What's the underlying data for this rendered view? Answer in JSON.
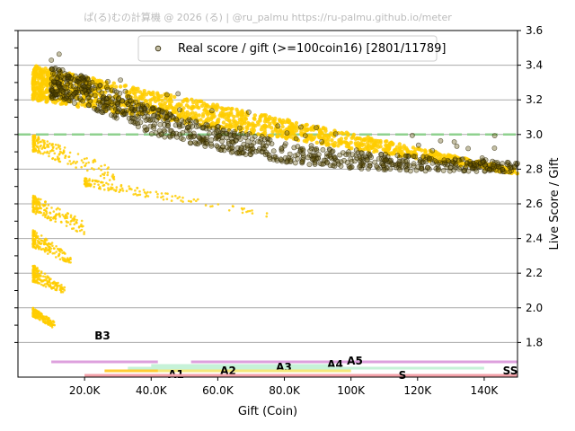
{
  "credit": "ぱ(る)むの計算機 @ 2026 (る) | @ru_palmu  https://ru-palmu.github.io/meter",
  "colors": {
    "all_points": "#ffcc00",
    "real_points_fill": "#5a4a00",
    "real_points_edge": "#2a2200",
    "reference_line": "#8fd18f",
    "grid": "#a8a8a8"
  },
  "chart_data": {
    "type": "scatter",
    "title": "",
    "xlabel": "Gift (Coin)",
    "ylabel": "Live Score / Gift",
    "xlim": [
      0,
      150000
    ],
    "ylim": [
      1.6,
      3.6
    ],
    "x_ticks": [
      20000,
      40000,
      60000,
      80000,
      100000,
      120000,
      140000
    ],
    "x_tick_labels": [
      "20.0K",
      "40.0K",
      "60.0K",
      "80.0K",
      "100K",
      "120K",
      "140K"
    ],
    "y_ticks": [
      1.8,
      2.0,
      2.2,
      2.4,
      2.6,
      2.8,
      3.0,
      3.2,
      3.4,
      3.6
    ],
    "y_tick_labels": [
      "1.8",
      "2.0",
      "2.2",
      "2.4",
      "2.6",
      "2.8",
      "3.0",
      "3.2",
      "3.4",
      "3.6"
    ],
    "y_axis_side": "right",
    "grid": "horizontal",
    "legend": {
      "placement": "top-center",
      "entries": [
        "Real score / gift (>=100coin16) [2801/11789]"
      ]
    },
    "reference_line": {
      "y": 3.0,
      "style": "dashed"
    },
    "series": [
      {
        "name": "Real score / gift (>=100coin16) [2801/11789]",
        "marker": "circle",
        "trend": [
          [
            10000,
            3.3
          ],
          [
            20000,
            3.25
          ],
          [
            30000,
            3.17
          ],
          [
            40000,
            3.08
          ],
          [
            50000,
            3.03
          ],
          [
            60000,
            2.98
          ],
          [
            70000,
            2.94
          ],
          [
            80000,
            2.9
          ],
          [
            90000,
            2.87
          ],
          [
            100000,
            2.85
          ],
          [
            120000,
            2.83
          ],
          [
            140000,
            2.82
          ],
          [
            150000,
            2.81
          ]
        ]
      },
      {
        "marker": "dot",
        "bands": [
          {
            "x": [
              4500,
              150000
            ],
            "top": [
              3.4,
              2.8
            ],
            "bottom": [
              3.2,
              2.77
            ]
          },
          {
            "x": [
              4500,
              30000
            ],
            "top": [
              3.0,
              2.8
            ],
            "bottom": [
              2.9,
              2.72
            ]
          },
          {
            "x": [
              20000,
              75000
            ],
            "top": [
              2.75,
              2.55
            ],
            "bottom": [
              2.7,
              2.52
            ]
          },
          {
            "x": [
              4500,
              20000
            ],
            "top": [
              2.65,
              2.5
            ],
            "bottom": [
              2.55,
              2.42
            ]
          },
          {
            "x": [
              4500,
              16000
            ],
            "top": [
              2.45,
              2.3
            ],
            "bottom": [
              2.35,
              2.25
            ]
          },
          {
            "x": [
              4500,
              14000
            ],
            "top": [
              2.25,
              2.12
            ],
            "bottom": [
              2.15,
              2.08
            ]
          },
          {
            "x": [
              4500,
              11000
            ],
            "top": [
              2.0,
              1.92
            ],
            "bottom": [
              1.95,
              1.88
            ]
          }
        ]
      }
    ],
    "rank_bands": [
      {
        "label": "B3",
        "x": [
          10000,
          42000
        ],
        "color": "#dda0dd"
      },
      {
        "label": "A5",
        "x": [
          52000,
          150000
        ],
        "color": "#dda0dd"
      },
      {
        "label": "A4",
        "x": [
          40000,
          95000
        ],
        "color": "#c6f2d8"
      },
      {
        "label": "A3",
        "x": [
          33000,
          140000
        ],
        "color": "#c6f2d8"
      },
      {
        "label": "A2",
        "x": [
          27000,
          100000
        ],
        "color": "#f5e87a"
      },
      {
        "label": "A1",
        "x": [
          26000,
          42000
        ],
        "color": "#ffcc33"
      },
      {
        "label": "S",
        "x": [
          20000,
          150000
        ],
        "color": "#f2a0a8"
      },
      {
        "label": "SS",
        "x": [
          140000,
          150000
        ],
        "color": "#f2a0a8"
      }
    ]
  }
}
